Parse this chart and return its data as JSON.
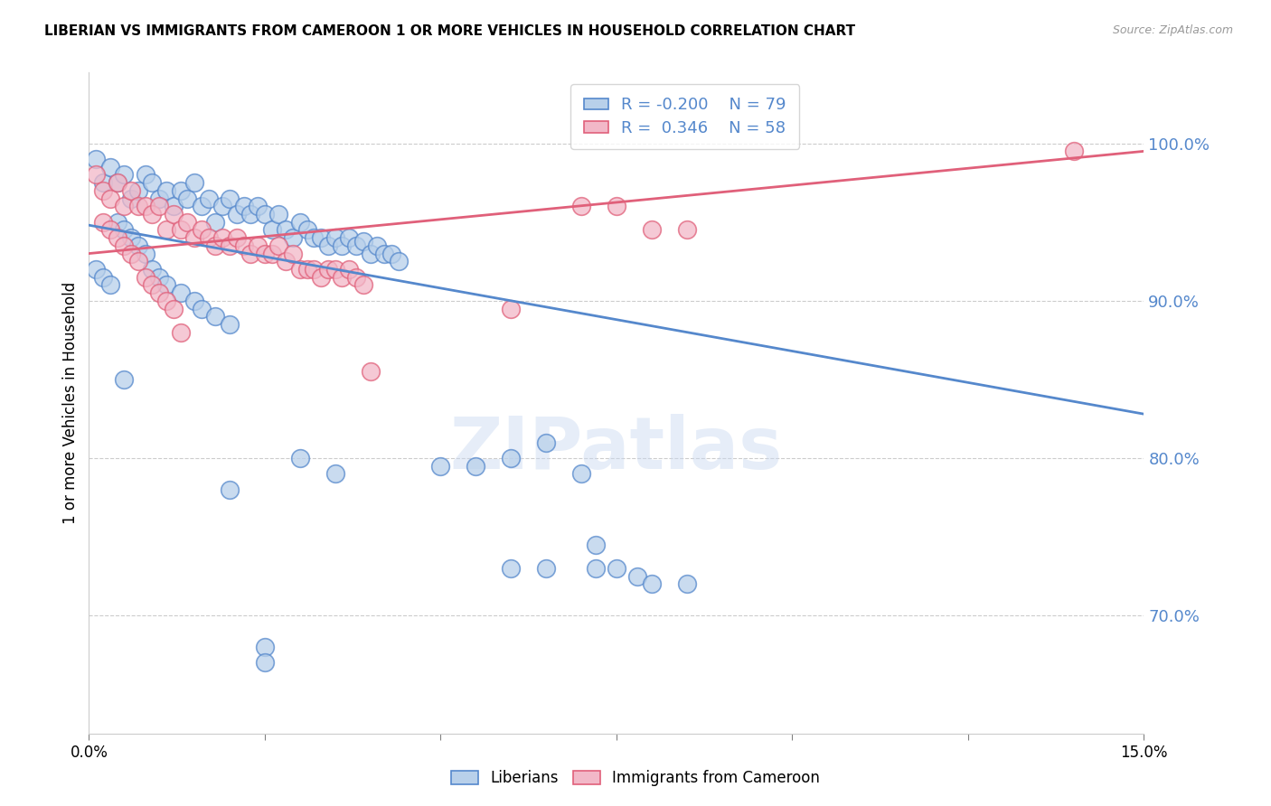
{
  "title": "LIBERIAN VS IMMIGRANTS FROM CAMEROON 1 OR MORE VEHICLES IN HOUSEHOLD CORRELATION CHART",
  "source": "Source: ZipAtlas.com",
  "ylabel": "1 or more Vehicles in Household",
  "yticks": [
    "70.0%",
    "80.0%",
    "90.0%",
    "100.0%"
  ],
  "ytick_vals": [
    0.7,
    0.8,
    0.9,
    1.0
  ],
  "xmin": 0.0,
  "xmax": 0.15,
  "ymin": 0.625,
  "ymax": 1.045,
  "legend_blue_label": "Liberians",
  "legend_pink_label": "Immigrants from Cameroon",
  "R_blue": -0.2,
  "N_blue": 79,
  "R_pink": 0.346,
  "N_pink": 58,
  "blue_color": "#b8d0ea",
  "pink_color": "#f2b8c8",
  "blue_line_color": "#5588cc",
  "pink_line_color": "#e0607a",
  "watermark": "ZIPatlas",
  "blue_line_x0": 0.0,
  "blue_line_y0": 0.948,
  "blue_line_x1": 0.15,
  "blue_line_y1": 0.828,
  "pink_line_x0": 0.0,
  "pink_line_y0": 0.93,
  "pink_line_x1": 0.15,
  "pink_line_y1": 0.995,
  "blue_dots": [
    [
      0.001,
      0.99
    ],
    [
      0.002,
      0.975
    ],
    [
      0.003,
      0.985
    ],
    [
      0.004,
      0.975
    ],
    [
      0.005,
      0.98
    ],
    [
      0.006,
      0.965
    ],
    [
      0.007,
      0.97
    ],
    [
      0.008,
      0.98
    ],
    [
      0.009,
      0.975
    ],
    [
      0.01,
      0.965
    ],
    [
      0.011,
      0.97
    ],
    [
      0.012,
      0.96
    ],
    [
      0.013,
      0.97
    ],
    [
      0.014,
      0.965
    ],
    [
      0.015,
      0.975
    ],
    [
      0.016,
      0.96
    ],
    [
      0.017,
      0.965
    ],
    [
      0.018,
      0.95
    ],
    [
      0.019,
      0.96
    ],
    [
      0.02,
      0.965
    ],
    [
      0.021,
      0.955
    ],
    [
      0.022,
      0.96
    ],
    [
      0.023,
      0.955
    ],
    [
      0.024,
      0.96
    ],
    [
      0.025,
      0.955
    ],
    [
      0.026,
      0.945
    ],
    [
      0.027,
      0.955
    ],
    [
      0.028,
      0.945
    ],
    [
      0.029,
      0.94
    ],
    [
      0.03,
      0.95
    ],
    [
      0.031,
      0.945
    ],
    [
      0.032,
      0.94
    ],
    [
      0.033,
      0.94
    ],
    [
      0.034,
      0.935
    ],
    [
      0.035,
      0.94
    ],
    [
      0.036,
      0.935
    ],
    [
      0.037,
      0.94
    ],
    [
      0.038,
      0.935
    ],
    [
      0.039,
      0.938
    ],
    [
      0.04,
      0.93
    ],
    [
      0.041,
      0.935
    ],
    [
      0.042,
      0.93
    ],
    [
      0.043,
      0.93
    ],
    [
      0.044,
      0.925
    ],
    [
      0.004,
      0.95
    ],
    [
      0.005,
      0.945
    ],
    [
      0.006,
      0.94
    ],
    [
      0.007,
      0.935
    ],
    [
      0.008,
      0.93
    ],
    [
      0.009,
      0.92
    ],
    [
      0.01,
      0.915
    ],
    [
      0.011,
      0.91
    ],
    [
      0.013,
      0.905
    ],
    [
      0.015,
      0.9
    ],
    [
      0.016,
      0.895
    ],
    [
      0.018,
      0.89
    ],
    [
      0.02,
      0.885
    ],
    [
      0.001,
      0.92
    ],
    [
      0.002,
      0.915
    ],
    [
      0.003,
      0.91
    ],
    [
      0.06,
      0.8
    ],
    [
      0.065,
      0.81
    ],
    [
      0.07,
      0.79
    ],
    [
      0.072,
      0.745
    ],
    [
      0.075,
      0.73
    ],
    [
      0.078,
      0.725
    ],
    [
      0.08,
      0.72
    ],
    [
      0.085,
      0.72
    ],
    [
      0.005,
      0.85
    ],
    [
      0.02,
      0.78
    ],
    [
      0.025,
      0.68
    ],
    [
      0.03,
      0.8
    ],
    [
      0.035,
      0.79
    ],
    [
      0.05,
      0.795
    ],
    [
      0.055,
      0.795
    ],
    [
      0.06,
      0.73
    ],
    [
      0.065,
      0.73
    ],
    [
      0.072,
      0.73
    ],
    [
      0.025,
      0.67
    ]
  ],
  "pink_dots": [
    [
      0.001,
      0.98
    ],
    [
      0.002,
      0.97
    ],
    [
      0.003,
      0.965
    ],
    [
      0.004,
      0.975
    ],
    [
      0.005,
      0.96
    ],
    [
      0.006,
      0.97
    ],
    [
      0.007,
      0.96
    ],
    [
      0.008,
      0.96
    ],
    [
      0.009,
      0.955
    ],
    [
      0.01,
      0.96
    ],
    [
      0.011,
      0.945
    ],
    [
      0.012,
      0.955
    ],
    [
      0.013,
      0.945
    ],
    [
      0.014,
      0.95
    ],
    [
      0.015,
      0.94
    ],
    [
      0.016,
      0.945
    ],
    [
      0.017,
      0.94
    ],
    [
      0.018,
      0.935
    ],
    [
      0.019,
      0.94
    ],
    [
      0.02,
      0.935
    ],
    [
      0.021,
      0.94
    ],
    [
      0.022,
      0.935
    ],
    [
      0.023,
      0.93
    ],
    [
      0.024,
      0.935
    ],
    [
      0.025,
      0.93
    ],
    [
      0.026,
      0.93
    ],
    [
      0.027,
      0.935
    ],
    [
      0.028,
      0.925
    ],
    [
      0.029,
      0.93
    ],
    [
      0.03,
      0.92
    ],
    [
      0.031,
      0.92
    ],
    [
      0.032,
      0.92
    ],
    [
      0.033,
      0.915
    ],
    [
      0.034,
      0.92
    ],
    [
      0.035,
      0.92
    ],
    [
      0.036,
      0.915
    ],
    [
      0.037,
      0.92
    ],
    [
      0.038,
      0.915
    ],
    [
      0.039,
      0.91
    ],
    [
      0.04,
      0.855
    ],
    [
      0.002,
      0.95
    ],
    [
      0.003,
      0.945
    ],
    [
      0.004,
      0.94
    ],
    [
      0.005,
      0.935
    ],
    [
      0.006,
      0.93
    ],
    [
      0.007,
      0.925
    ],
    [
      0.008,
      0.915
    ],
    [
      0.009,
      0.91
    ],
    [
      0.01,
      0.905
    ],
    [
      0.011,
      0.9
    ],
    [
      0.012,
      0.895
    ],
    [
      0.013,
      0.88
    ],
    [
      0.06,
      0.895
    ],
    [
      0.07,
      0.96
    ],
    [
      0.075,
      0.96
    ],
    [
      0.08,
      0.945
    ],
    [
      0.085,
      0.945
    ],
    [
      0.14,
      0.995
    ]
  ]
}
